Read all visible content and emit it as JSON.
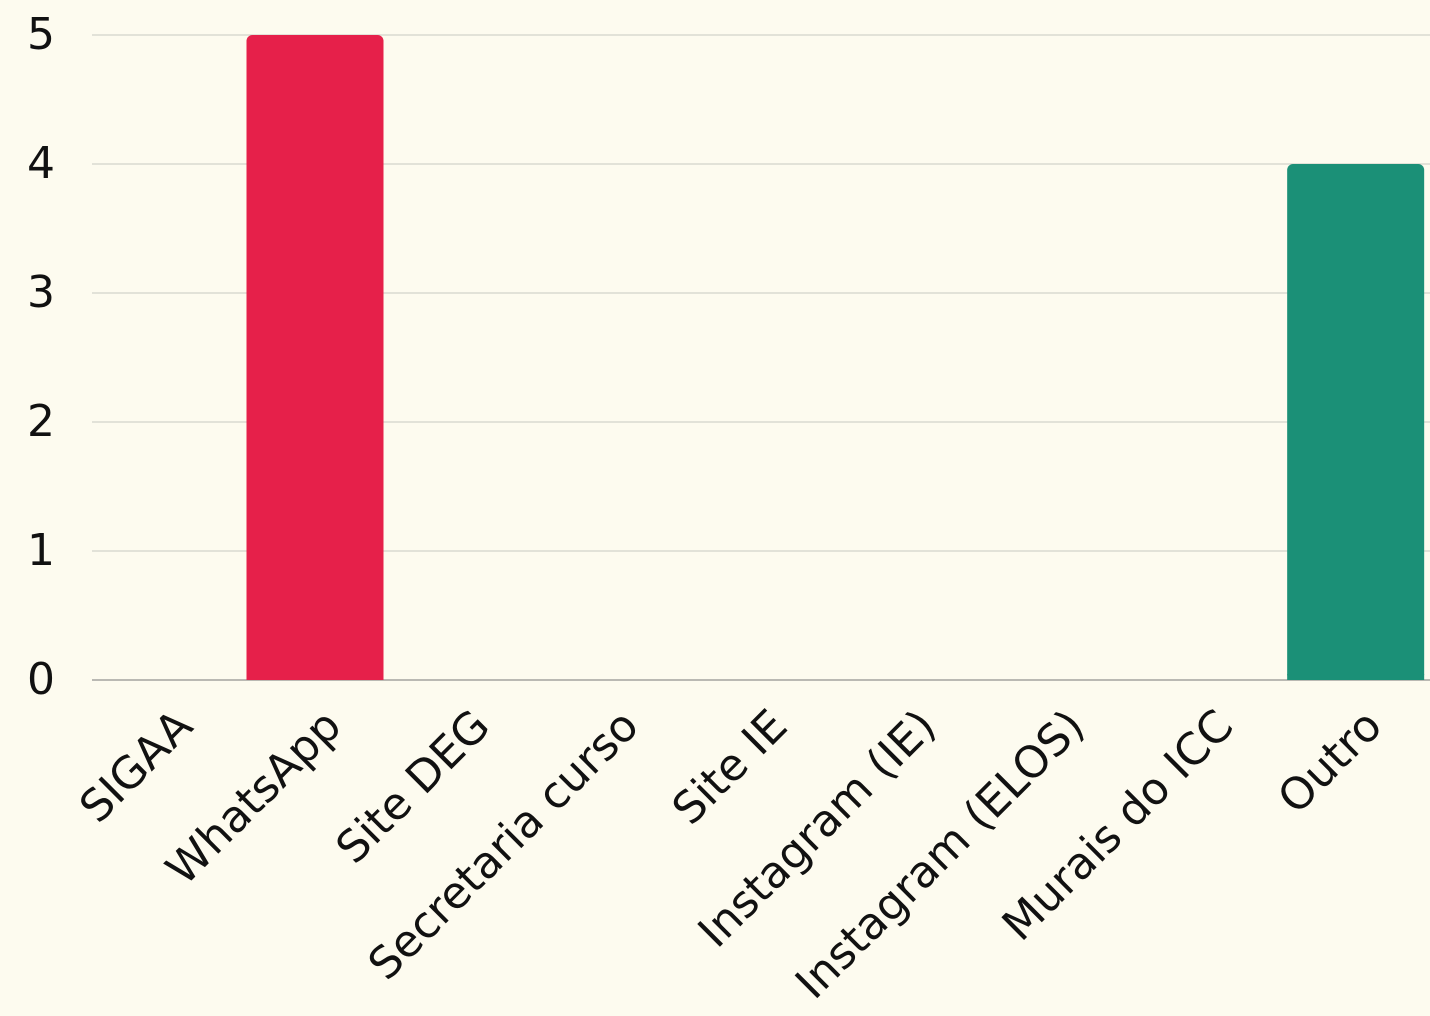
{
  "chart_data": {
    "type": "bar",
    "categories": [
      "SIGAA",
      "WhatsApp",
      "Site DEG",
      "Secretaria curso",
      "Site IE",
      "Instagram (IE)",
      "Instagram (ELOS)",
      "Murais do ICC",
      "Outro"
    ],
    "values": [
      0,
      5,
      0,
      0,
      0,
      0,
      0,
      0,
      4
    ],
    "colors": [
      null,
      "#e6204a",
      null,
      null,
      null,
      null,
      null,
      null,
      "#1b9077"
    ],
    "ylim": [
      0,
      5
    ],
    "yticks": [
      0,
      1,
      2,
      3,
      4,
      5
    ],
    "grid": true
  }
}
